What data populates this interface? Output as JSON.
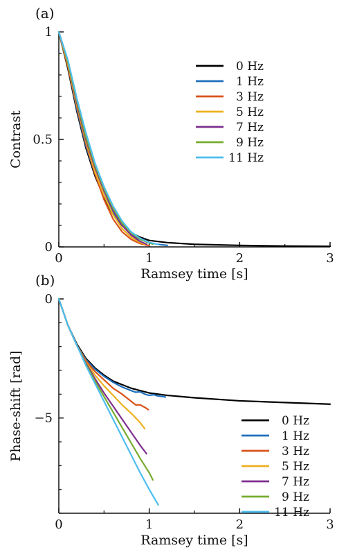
{
  "chart_data": [
    {
      "panel_label": "(a)",
      "type": "line",
      "xlabel": "Ramsey time [s]",
      "ylabel": "Contrast",
      "xlim": [
        0,
        3
      ],
      "ylim": [
        0,
        1
      ],
      "xticks": [
        0,
        1,
        2,
        3
      ],
      "yticks": [
        0,
        0.5,
        1
      ],
      "xtick_labels": [
        "0",
        "1",
        "2",
        "3"
      ],
      "ytick_labels": [
        "0",
        "0.5",
        "1"
      ],
      "grid": false,
      "legend_position": "upper-right",
      "series": [
        {
          "name": "0 Hz",
          "color": "#000000",
          "x": [
            0,
            0.1,
            0.2,
            0.3,
            0.4,
            0.5,
            0.6,
            0.7,
            0.8,
            0.9,
            1.0,
            1.2,
            1.5,
            2.0,
            2.5,
            3.0
          ],
          "y": [
            1.0,
            0.83,
            0.63,
            0.46,
            0.33,
            0.23,
            0.15,
            0.1,
            0.065,
            0.045,
            0.03,
            0.02,
            0.012,
            0.007,
            0.004,
            0.003
          ]
        },
        {
          "name": "1 Hz",
          "color": "#1f6fbd",
          "x": [
            0,
            0.1,
            0.2,
            0.3,
            0.4,
            0.5,
            0.6,
            0.7,
            0.8,
            0.9,
            1.0,
            1.1,
            1.2
          ],
          "y": [
            1.0,
            0.84,
            0.64,
            0.47,
            0.34,
            0.24,
            0.16,
            0.1,
            0.06,
            0.035,
            0.02,
            0.012,
            0.007
          ]
        },
        {
          "name": "3 Hz",
          "color": "#d95319",
          "x": [
            0,
            0.1,
            0.2,
            0.3,
            0.4,
            0.5,
            0.6,
            0.7,
            0.8,
            0.9,
            1.0
          ],
          "y": [
            1.0,
            0.84,
            0.65,
            0.48,
            0.34,
            0.22,
            0.13,
            0.07,
            0.035,
            0.015,
            0.006
          ]
        },
        {
          "name": "5 Hz",
          "color": "#edb120",
          "x": [
            0,
            0.1,
            0.2,
            0.3,
            0.4,
            0.5,
            0.6,
            0.7,
            0.8,
            0.9,
            0.95
          ],
          "y": [
            1.0,
            0.85,
            0.66,
            0.49,
            0.35,
            0.24,
            0.15,
            0.085,
            0.045,
            0.02,
            0.012
          ]
        },
        {
          "name": "7 Hz",
          "color": "#7e2f8e",
          "x": [
            0,
            0.1,
            0.2,
            0.3,
            0.4,
            0.5,
            0.6,
            0.7,
            0.8,
            0.9,
            0.97
          ],
          "y": [
            1.0,
            0.86,
            0.67,
            0.5,
            0.37,
            0.26,
            0.17,
            0.1,
            0.055,
            0.025,
            0.013
          ]
        },
        {
          "name": "9 Hz",
          "color": "#77ac30",
          "x": [
            0,
            0.1,
            0.2,
            0.3,
            0.4,
            0.5,
            0.6,
            0.7,
            0.8,
            0.9,
            1.0,
            1.04
          ],
          "y": [
            1.0,
            0.86,
            0.68,
            0.51,
            0.38,
            0.27,
            0.18,
            0.11,
            0.065,
            0.035,
            0.018,
            0.013
          ]
        },
        {
          "name": "11 Hz",
          "color": "#4dbeee",
          "x": [
            0,
            0.1,
            0.2,
            0.3,
            0.4,
            0.5,
            0.6,
            0.7,
            0.8,
            0.9,
            1.0,
            1.1
          ],
          "y": [
            1.0,
            0.87,
            0.69,
            0.53,
            0.39,
            0.28,
            0.19,
            0.12,
            0.07,
            0.04,
            0.02,
            0.012
          ]
        }
      ]
    },
    {
      "panel_label": "(b)",
      "type": "line",
      "xlabel": "Ramsey time [s]",
      "ylabel": "Phase-shift [rad]",
      "xlim": [
        0,
        3
      ],
      "ylim": [
        -9,
        0
      ],
      "xticks": [
        0,
        1,
        2,
        3
      ],
      "yticks": [
        0,
        -5
      ],
      "xtick_labels": [
        "0",
        "1",
        "2",
        "3"
      ],
      "ytick_labels": [
        "0",
        "−5"
      ],
      "grid": false,
      "legend_position": "lower-right",
      "series": [
        {
          "name": "0 Hz",
          "color": "#000000",
          "x": [
            0,
            0.1,
            0.2,
            0.3,
            0.4,
            0.5,
            0.6,
            0.7,
            0.8,
            0.9,
            1.0,
            1.2,
            1.5,
            2.0,
            2.5,
            3.0
          ],
          "y": [
            0,
            -1.1,
            -1.9,
            -2.5,
            -2.9,
            -3.2,
            -3.45,
            -3.6,
            -3.75,
            -3.85,
            -3.95,
            -4.05,
            -4.15,
            -4.28,
            -4.35,
            -4.42
          ]
        },
        {
          "name": "1 Hz",
          "color": "#1f6fbd",
          "x": [
            0,
            0.1,
            0.2,
            0.3,
            0.4,
            0.5,
            0.6,
            0.7,
            0.8,
            0.85,
            0.9,
            0.95,
            1.0,
            1.05,
            1.1,
            1.15,
            1.18
          ],
          "y": [
            0,
            -1.1,
            -1.95,
            -2.55,
            -2.95,
            -3.25,
            -3.5,
            -3.7,
            -3.85,
            -3.92,
            -3.9,
            -4.0,
            -4.05,
            -4.02,
            -4.08,
            -4.1,
            -4.12
          ]
        },
        {
          "name": "3 Hz",
          "color": "#d95319",
          "x": [
            0,
            0.1,
            0.2,
            0.3,
            0.4,
            0.5,
            0.6,
            0.7,
            0.8,
            0.85,
            0.9,
            0.95,
            0.99
          ],
          "y": [
            0,
            -1.1,
            -1.95,
            -2.6,
            -3.05,
            -3.4,
            -3.75,
            -4.0,
            -4.3,
            -4.45,
            -4.45,
            -4.55,
            -4.65
          ]
        },
        {
          "name": "5 Hz",
          "color": "#edb120",
          "x": [
            0,
            0.1,
            0.2,
            0.3,
            0.4,
            0.5,
            0.6,
            0.7,
            0.8,
            0.9,
            0.95
          ],
          "y": [
            0,
            -1.1,
            -1.95,
            -2.65,
            -3.2,
            -3.65,
            -4.05,
            -4.45,
            -4.8,
            -5.2,
            -5.45
          ]
        },
        {
          "name": "7 Hz",
          "color": "#7e2f8e",
          "x": [
            0,
            0.1,
            0.2,
            0.3,
            0.4,
            0.5,
            0.6,
            0.7,
            0.8,
            0.9,
            0.97
          ],
          "y": [
            0,
            -1.1,
            -1.95,
            -2.7,
            -3.35,
            -3.95,
            -4.5,
            -5.05,
            -5.6,
            -6.15,
            -6.5
          ]
        },
        {
          "name": "9 Hz",
          "color": "#77ac30",
          "x": [
            0,
            0.1,
            0.2,
            0.3,
            0.4,
            0.5,
            0.6,
            0.7,
            0.8,
            0.9,
            1.0,
            1.04
          ],
          "y": [
            0,
            -1.1,
            -1.95,
            -2.75,
            -3.45,
            -4.1,
            -4.75,
            -5.4,
            -6.05,
            -6.7,
            -7.3,
            -7.6
          ]
        },
        {
          "name": "11 Hz",
          "color": "#4dbeee",
          "x": [
            0,
            0.1,
            0.2,
            0.3,
            0.4,
            0.5,
            0.6,
            0.7,
            0.8,
            0.9,
            1.0,
            1.1
          ],
          "y": [
            0,
            -1.1,
            -1.95,
            -2.8,
            -3.55,
            -4.3,
            -5.05,
            -5.8,
            -6.55,
            -7.3,
            -8.0,
            -8.65
          ]
        }
      ]
    }
  ]
}
